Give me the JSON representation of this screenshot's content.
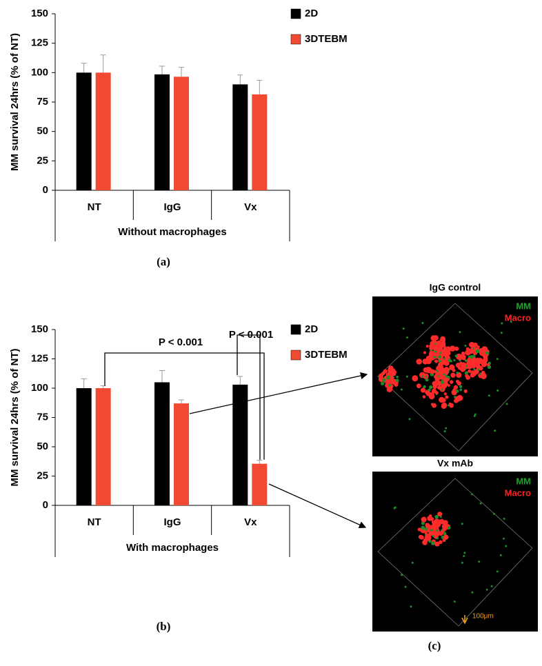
{
  "chart_data": [
    {
      "type": "bar",
      "ylabel": "MM survival 24hrs (% of NT)",
      "xlabel": "Without macrophages",
      "categories": [
        "NT",
        "IgG",
        "Vx"
      ],
      "series": [
        {
          "name": "2D",
          "color": "#000000",
          "values": [
            100,
            98.5,
            90
          ],
          "errors": [
            8,
            7,
            8
          ]
        },
        {
          "name": "3DTEBM",
          "color": "#f04a32",
          "values": [
            100,
            96.5,
            81.5
          ],
          "errors": [
            15,
            8,
            12
          ]
        }
      ],
      "ylim": [
        0,
        150
      ],
      "yticks": [
        0,
        25,
        50,
        75,
        100,
        125,
        150
      ],
      "panel": "(a)"
    },
    {
      "type": "bar",
      "ylabel": "MM survival 24hrs (% of NT)",
      "xlabel": "With macrophages",
      "categories": [
        "NT",
        "IgG",
        "Vx"
      ],
      "series": [
        {
          "name": "2D",
          "color": "#000000",
          "values": [
            100,
            105,
            103
          ],
          "errors": [
            8,
            10,
            7
          ]
        },
        {
          "name": "3DTEBM",
          "color": "#f04a32",
          "values": [
            100,
            87,
            35.5
          ],
          "errors": [
            2,
            3,
            3
          ]
        }
      ],
      "ylim": [
        0,
        150
      ],
      "yticks": [
        0,
        25,
        50,
        75,
        100,
        125,
        150
      ],
      "annotations": [
        "P < 0.001",
        "P < 0.001"
      ],
      "panel": "(b)"
    }
  ],
  "images": [
    {
      "title": "IgG control",
      "labels": [
        "MM",
        "Macro"
      ]
    },
    {
      "title": "Vx mAb",
      "labels": [
        "MM",
        "Macro"
      ],
      "scale": "100μm"
    }
  ],
  "image_panel": "(c)"
}
